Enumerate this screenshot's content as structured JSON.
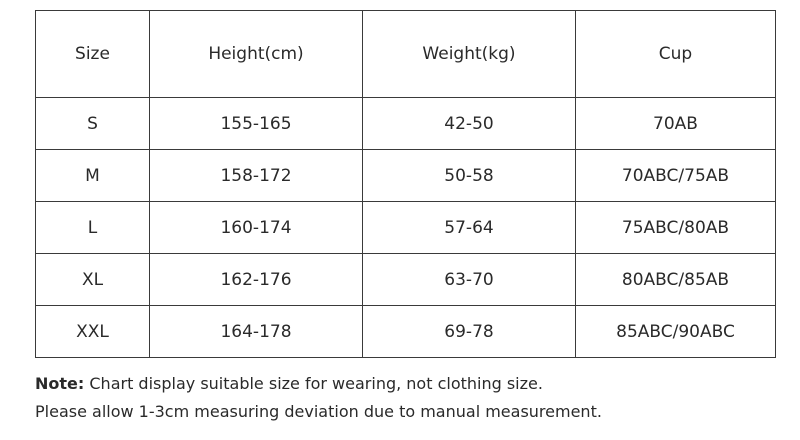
{
  "table": {
    "headers": [
      "Size",
      "Height(cm)",
      "Weight(kg)",
      "Cup"
    ],
    "rows": [
      [
        "S",
        "155-165",
        "42-50",
        "70AB"
      ],
      [
        "M",
        "158-172",
        "50-58",
        "70ABC/75AB"
      ],
      [
        "L",
        "160-174",
        "57-64",
        "75ABC/80AB"
      ],
      [
        "XL",
        "162-176",
        "63-70",
        "80ABC/85AB"
      ],
      [
        "XXL",
        "164-178",
        "69-78",
        "85ABC/90ABC"
      ]
    ]
  },
  "notes": {
    "label": "Note:",
    "line1": "Chart display suitable size for wearing, not clothing size.",
    "line2": "Please allow 1-3cm measuring deviation due to manual measurement."
  }
}
